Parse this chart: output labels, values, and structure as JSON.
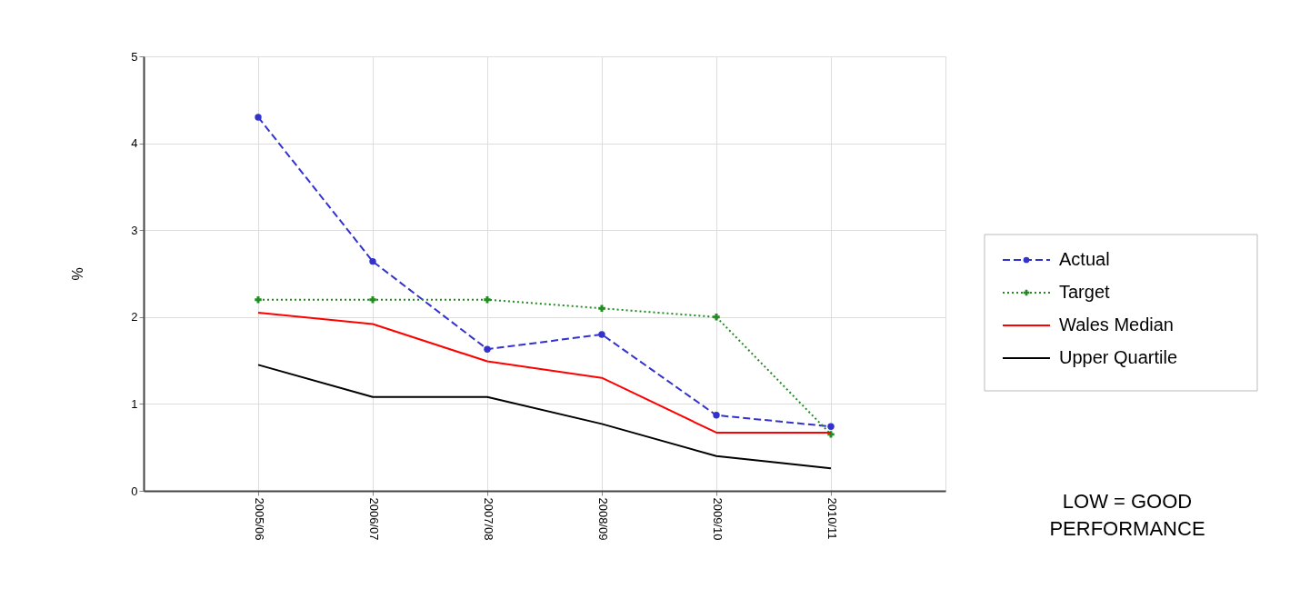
{
  "chart_data": {
    "type": "line",
    "ylabel": "%",
    "categories": [
      "2005/06",
      "2006/07",
      "2007/08",
      "2008/09",
      "2009/10",
      "2010/11"
    ],
    "ylim": [
      0,
      5
    ],
    "yticks": [
      0,
      1,
      2,
      3,
      4,
      5
    ],
    "grid": true,
    "legend": "right",
    "series": [
      {
        "name": "Actual",
        "color": "#3333cc",
        "values": [
          4.3,
          2.64,
          1.63,
          1.8,
          0.87,
          0.74
        ],
        "marker": "circle",
        "line_style": "dashed"
      },
      {
        "name": "Target",
        "color": "#228b22",
        "values": [
          2.2,
          2.2,
          2.2,
          2.1,
          2.0,
          0.65
        ],
        "marker": "cross",
        "line_style": "dotted"
      },
      {
        "name": "Wales Median",
        "color": "#ff0000",
        "values": [
          2.05,
          1.92,
          1.49,
          1.3,
          0.67,
          0.67
        ],
        "line_style": "solid"
      },
      {
        "name": "Upper Quartile",
        "color": "#000000",
        "values": [
          1.45,
          1.08,
          1.08,
          0.77,
          0.4,
          0.26
        ],
        "line_style": "solid"
      }
    ],
    "annotations": [
      "LOW = GOOD PERFORMANCE"
    ]
  }
}
